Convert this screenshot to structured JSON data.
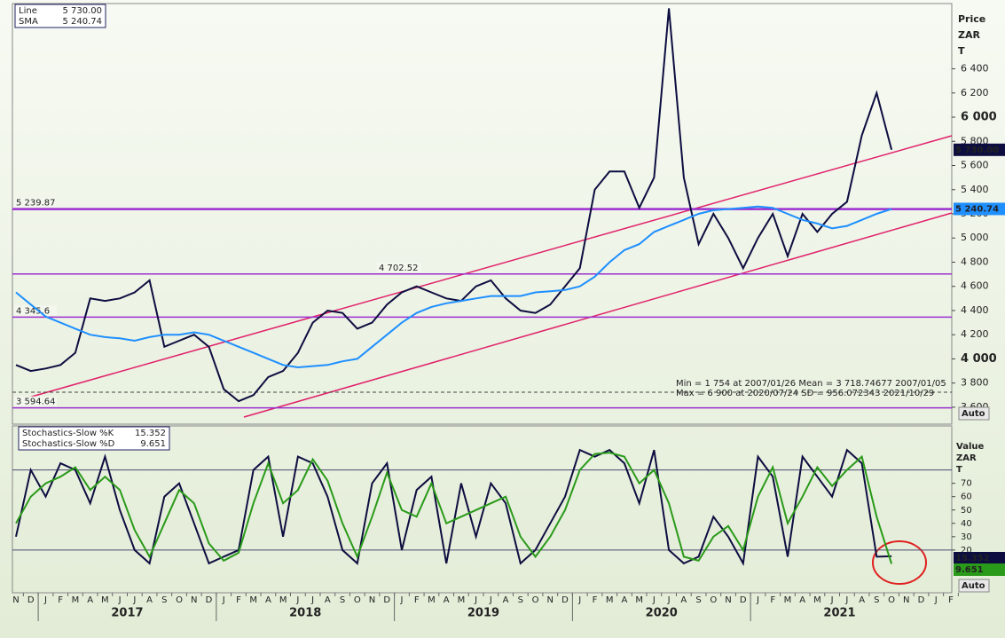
{
  "chart_data": {
    "type": "line",
    "price_axis_title": [
      "Price",
      "ZAR",
      "T"
    ],
    "stoch_axis_title": [
      "Value",
      "ZAR",
      "T"
    ],
    "auto_label": "Auto",
    "categories": [
      "N",
      "D",
      "J",
      "F",
      "M",
      "A",
      "M",
      "J",
      "J",
      "A",
      "S",
      "O",
      "N",
      "D",
      "J",
      "F",
      "M",
      "A",
      "M",
      "J",
      "J",
      "A",
      "S",
      "O",
      "N",
      "D",
      "J",
      "F",
      "M",
      "A",
      "M",
      "J",
      "J",
      "A",
      "S",
      "O",
      "N",
      "D",
      "J",
      "F",
      "M",
      "A",
      "M",
      "J",
      "J",
      "A",
      "S",
      "O",
      "N",
      "D",
      "J",
      "F",
      "M",
      "A",
      "M",
      "J",
      "J",
      "A",
      "S",
      "O",
      "N",
      "D",
      "J",
      "F"
    ],
    "years": [
      "2017",
      "2018",
      "2019",
      "2020",
      "2021"
    ],
    "ylim": [
      3460,
      6940
    ],
    "yticks": [
      {
        "value": 3600,
        "label": "3 600"
      },
      {
        "value": 3800,
        "label": "3 800"
      },
      {
        "value": 4000,
        "label": "4 000"
      },
      {
        "value": 4200,
        "label": "4 200"
      },
      {
        "value": 4400,
        "label": "4 400"
      },
      {
        "value": 4600,
        "label": "4 600"
      },
      {
        "value": 4800,
        "label": "4 800"
      },
      {
        "value": 5000,
        "label": "5 000"
      },
      {
        "value": 5200,
        "label": "5 200"
      },
      {
        "value": 5400,
        "label": "5 400"
      },
      {
        "value": 5600,
        "label": "5 600"
      },
      {
        "value": 5800,
        "label": "5 800"
      },
      {
        "value": 6000,
        "label": "6 000"
      },
      {
        "value": 6200,
        "label": "6 200"
      },
      {
        "value": 6400,
        "label": "6 400"
      }
    ],
    "bold_ticks": [
      4000,
      6000
    ],
    "levels": [
      {
        "value": 5239.87,
        "label": "5 239.87"
      },
      {
        "value": 4702.52,
        "label": "4 702.52"
      },
      {
        "value": 4345.6,
        "label": "4 345.6"
      },
      {
        "value": 3594.64,
        "label": "3 594.64"
      }
    ],
    "stats": [
      "Min  = 1 754 at 2007/01/26 Mean = 3 718.74677 2007/01/05",
      "Max = 6 900 at 2020/07/24 SD    = 956.072343  2021/10/29"
    ],
    "series": [
      {
        "name": "Line",
        "color": "#0d0d40",
        "last_label": "5 730.00",
        "values": [
          3950,
          3900,
          3920,
          3950,
          4050,
          4500,
          4480,
          4500,
          4550,
          4650,
          4100,
          4150,
          4200,
          4100,
          3750,
          3650,
          3700,
          3850,
          3900,
          4050,
          4300,
          4400,
          4380,
          4250,
          4300,
          4450,
          4550,
          4600,
          4550,
          4500,
          4480,
          4600,
          4650,
          4500,
          4400,
          4380,
          4450,
          4600,
          4750,
          5400,
          5550,
          5550,
          5250,
          5500,
          6900,
          5500,
          4950,
          5200,
          5000,
          4750,
          5000,
          5200,
          4850,
          5200,
          5050,
          5200,
          5300,
          5850,
          6200,
          5730,
          null,
          null,
          null,
          null
        ]
      },
      {
        "name": "SMA",
        "color": "#1e8fff",
        "last_label": "5 240.74",
        "values": [
          4550,
          4450,
          4350,
          4300,
          4250,
          4200,
          4180,
          4170,
          4150,
          4180,
          4200,
          4200,
          4220,
          4200,
          4150,
          4100,
          4050,
          4000,
          3950,
          3930,
          3940,
          3950,
          3980,
          4000,
          4100,
          4200,
          4300,
          4380,
          4430,
          4460,
          4480,
          4500,
          4520,
          4520,
          4520,
          4550,
          4560,
          4570,
          4600,
          4680,
          4800,
          4900,
          4950,
          5050,
          5100,
          5150,
          5200,
          5230,
          5240,
          5250,
          5260,
          5250,
          5200,
          5150,
          5120,
          5080,
          5100,
          5150,
          5200,
          5240.74,
          null,
          null,
          null,
          null
        ]
      }
    ],
    "stoch": {
      "ylim": [
        -12,
        113
      ],
      "yticks": [
        20,
        30,
        40,
        50,
        60,
        70
      ],
      "levels": [
        20,
        80
      ],
      "series": [
        {
          "name": "Stochastics-Slow %K",
          "color": "#0d0d40",
          "last_label": "15.352",
          "values": [
            30,
            80,
            60,
            85,
            80,
            55,
            90,
            50,
            20,
            10,
            60,
            70,
            40,
            10,
            15,
            20,
            80,
            90,
            30,
            90,
            85,
            60,
            20,
            10,
            70,
            85,
            20,
            65,
            75,
            10,
            70,
            30,
            70,
            55,
            10,
            20,
            40,
            60,
            95,
            90,
            95,
            85,
            55,
            95,
            20,
            10,
            15,
            45,
            30,
            10,
            90,
            75,
            15,
            90,
            75,
            60,
            95,
            85,
            15,
            15.352,
            null,
            null,
            null,
            null
          ]
        },
        {
          "name": "Stochastics-Slow %D",
          "color": "#2a9a1a",
          "last_label": "9.651",
          "values": [
            40,
            60,
            70,
            75,
            82,
            65,
            75,
            65,
            35,
            15,
            40,
            65,
            55,
            25,
            12,
            18,
            55,
            85,
            55,
            65,
            88,
            72,
            40,
            15,
            45,
            78,
            50,
            45,
            70,
            40,
            45,
            50,
            55,
            60,
            30,
            15,
            30,
            50,
            80,
            92,
            93,
            90,
            70,
            80,
            55,
            15,
            12,
            30,
            38,
            20,
            60,
            82,
            40,
            60,
            82,
            68,
            80,
            90,
            45,
            9.651,
            null,
            null,
            null,
            null
          ]
        }
      ]
    }
  }
}
